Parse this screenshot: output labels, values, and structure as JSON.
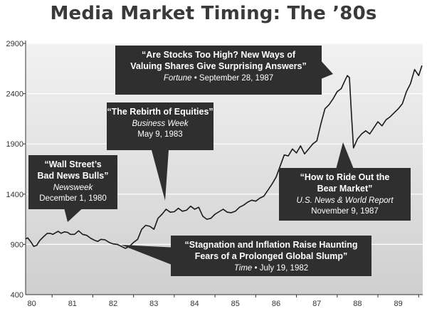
{
  "chart_data": {
    "type": "line",
    "title": "Media Market Timing: The ’80s",
    "xlabel": "",
    "ylabel": "",
    "xlim": [
      1979.85,
      1989.6
    ],
    "ylim": [
      400,
      2900
    ],
    "yticks": [
      900,
      1400,
      1900,
      2400,
      2900
    ],
    "ytick_labels": [
      "900",
      "1400",
      "1900",
      "2400",
      "2900"
    ],
    "bottom_label": "400",
    "xticks": [
      1980,
      1981,
      1982,
      1983,
      1984,
      1985,
      1986,
      1987,
      1988,
      1989
    ],
    "xtick_labels": [
      "80",
      "81",
      "82",
      "83",
      "84",
      "85",
      "86",
      "87",
      "88",
      "89"
    ],
    "grid": true,
    "legend": "none",
    "colors": {
      "line": "#1a1a1a",
      "callout": "#2f2f2f",
      "title": "#3a3a3a",
      "bg_top": "#f2f2f2",
      "bg_bottom": "#cfcfcf"
    },
    "series": [
      {
        "x": [
          1979.85,
          1979.9,
          1979.97,
          1980.05,
          1980.12,
          1980.2,
          1980.3,
          1980.38,
          1980.45,
          1980.52,
          1980.58,
          1980.65,
          1980.72,
          1980.8,
          1980.88,
          1980.95,
          1981.05,
          1981.15,
          1981.25,
          1981.35,
          1981.45,
          1981.55,
          1981.62,
          1981.7,
          1981.8,
          1981.9,
          1982.0,
          1982.1,
          1982.2,
          1982.3,
          1982.4,
          1982.5,
          1982.6,
          1982.7,
          1982.8,
          1982.9,
          1983.0,
          1983.1,
          1983.2,
          1983.3,
          1983.4,
          1983.5,
          1983.6,
          1983.7,
          1983.8,
          1983.9,
          1984.0,
          1984.1,
          1984.2,
          1984.3,
          1984.4,
          1984.5,
          1984.6,
          1984.7,
          1984.8,
          1984.9,
          1985.0,
          1985.1,
          1985.2,
          1985.3,
          1985.4,
          1985.5,
          1985.6,
          1985.7,
          1985.8,
          1985.9,
          1986.0,
          1986.1,
          1986.2,
          1986.3,
          1986.4,
          1986.5,
          1986.6,
          1986.7,
          1986.8,
          1986.9,
          1987.0,
          1987.1,
          1987.2,
          1987.3,
          1987.4,
          1987.5,
          1987.6,
          1987.7,
          1987.75,
          1987.8,
          1987.85,
          1987.9,
          1988.0,
          1988.1,
          1988.2,
          1988.3,
          1988.4,
          1988.5,
          1988.6,
          1988.7,
          1988.8,
          1988.9,
          1989.0,
          1989.1,
          1989.2,
          1989.3,
          1989.4,
          1989.5,
          1989.58
        ],
        "values": [
          955,
          965,
          930,
          880,
          890,
          940,
          980,
          1010,
          1010,
          1000,
          1015,
          1030,
          1010,
          1025,
          1020,
          1000,
          1000,
          1035,
          1000,
          990,
          960,
          940,
          930,
          950,
          945,
          920,
          905,
          900,
          880,
          860,
          880,
          920,
          950,
          1050,
          1090,
          1080,
          1050,
          1160,
          1200,
          1250,
          1220,
          1225,
          1260,
          1230,
          1240,
          1280,
          1250,
          1270,
          1180,
          1150,
          1160,
          1200,
          1225,
          1250,
          1220,
          1215,
          1230,
          1270,
          1290,
          1320,
          1340,
          1330,
          1360,
          1380,
          1440,
          1500,
          1570,
          1680,
          1790,
          1780,
          1850,
          1810,
          1880,
          1800,
          1850,
          1900,
          1930,
          2100,
          2250,
          2290,
          2350,
          2420,
          2450,
          2540,
          2580,
          2560,
          2200,
          1860,
          1950,
          2000,
          2030,
          2000,
          2060,
          2120,
          2080,
          2140,
          2170,
          2210,
          2250,
          2300,
          2420,
          2500,
          2640,
          2580,
          2680
        ]
      }
    ],
    "annotations": [
      {
        "lines": [
          "“Wall Street’s",
          "Bad News Bulls”"
        ],
        "source": "Newsweek",
        "date": "December 1, 1980"
      },
      {
        "lines": [
          "“The Rebirth of Equities”"
        ],
        "source": "Business Week",
        "date": "May 9, 1983"
      },
      {
        "lines": [
          "“Are Stocks Too High? New Ways of",
          "Valuing Shares Give Surprising Answers”"
        ],
        "source": "Fortune",
        "date": " • September 28, 1987"
      },
      {
        "lines": [
          "“How to Ride Out the",
          "Bear Market”"
        ],
        "source": "U.S. News & World Report",
        "date": "November 9, 1987"
      },
      {
        "lines": [
          "“Stagnation and Inflation Raise Haunting",
          "Fears of a Prolonged Global Slump”"
        ],
        "source": "Time",
        "date": " • July 19, 1982"
      }
    ]
  }
}
